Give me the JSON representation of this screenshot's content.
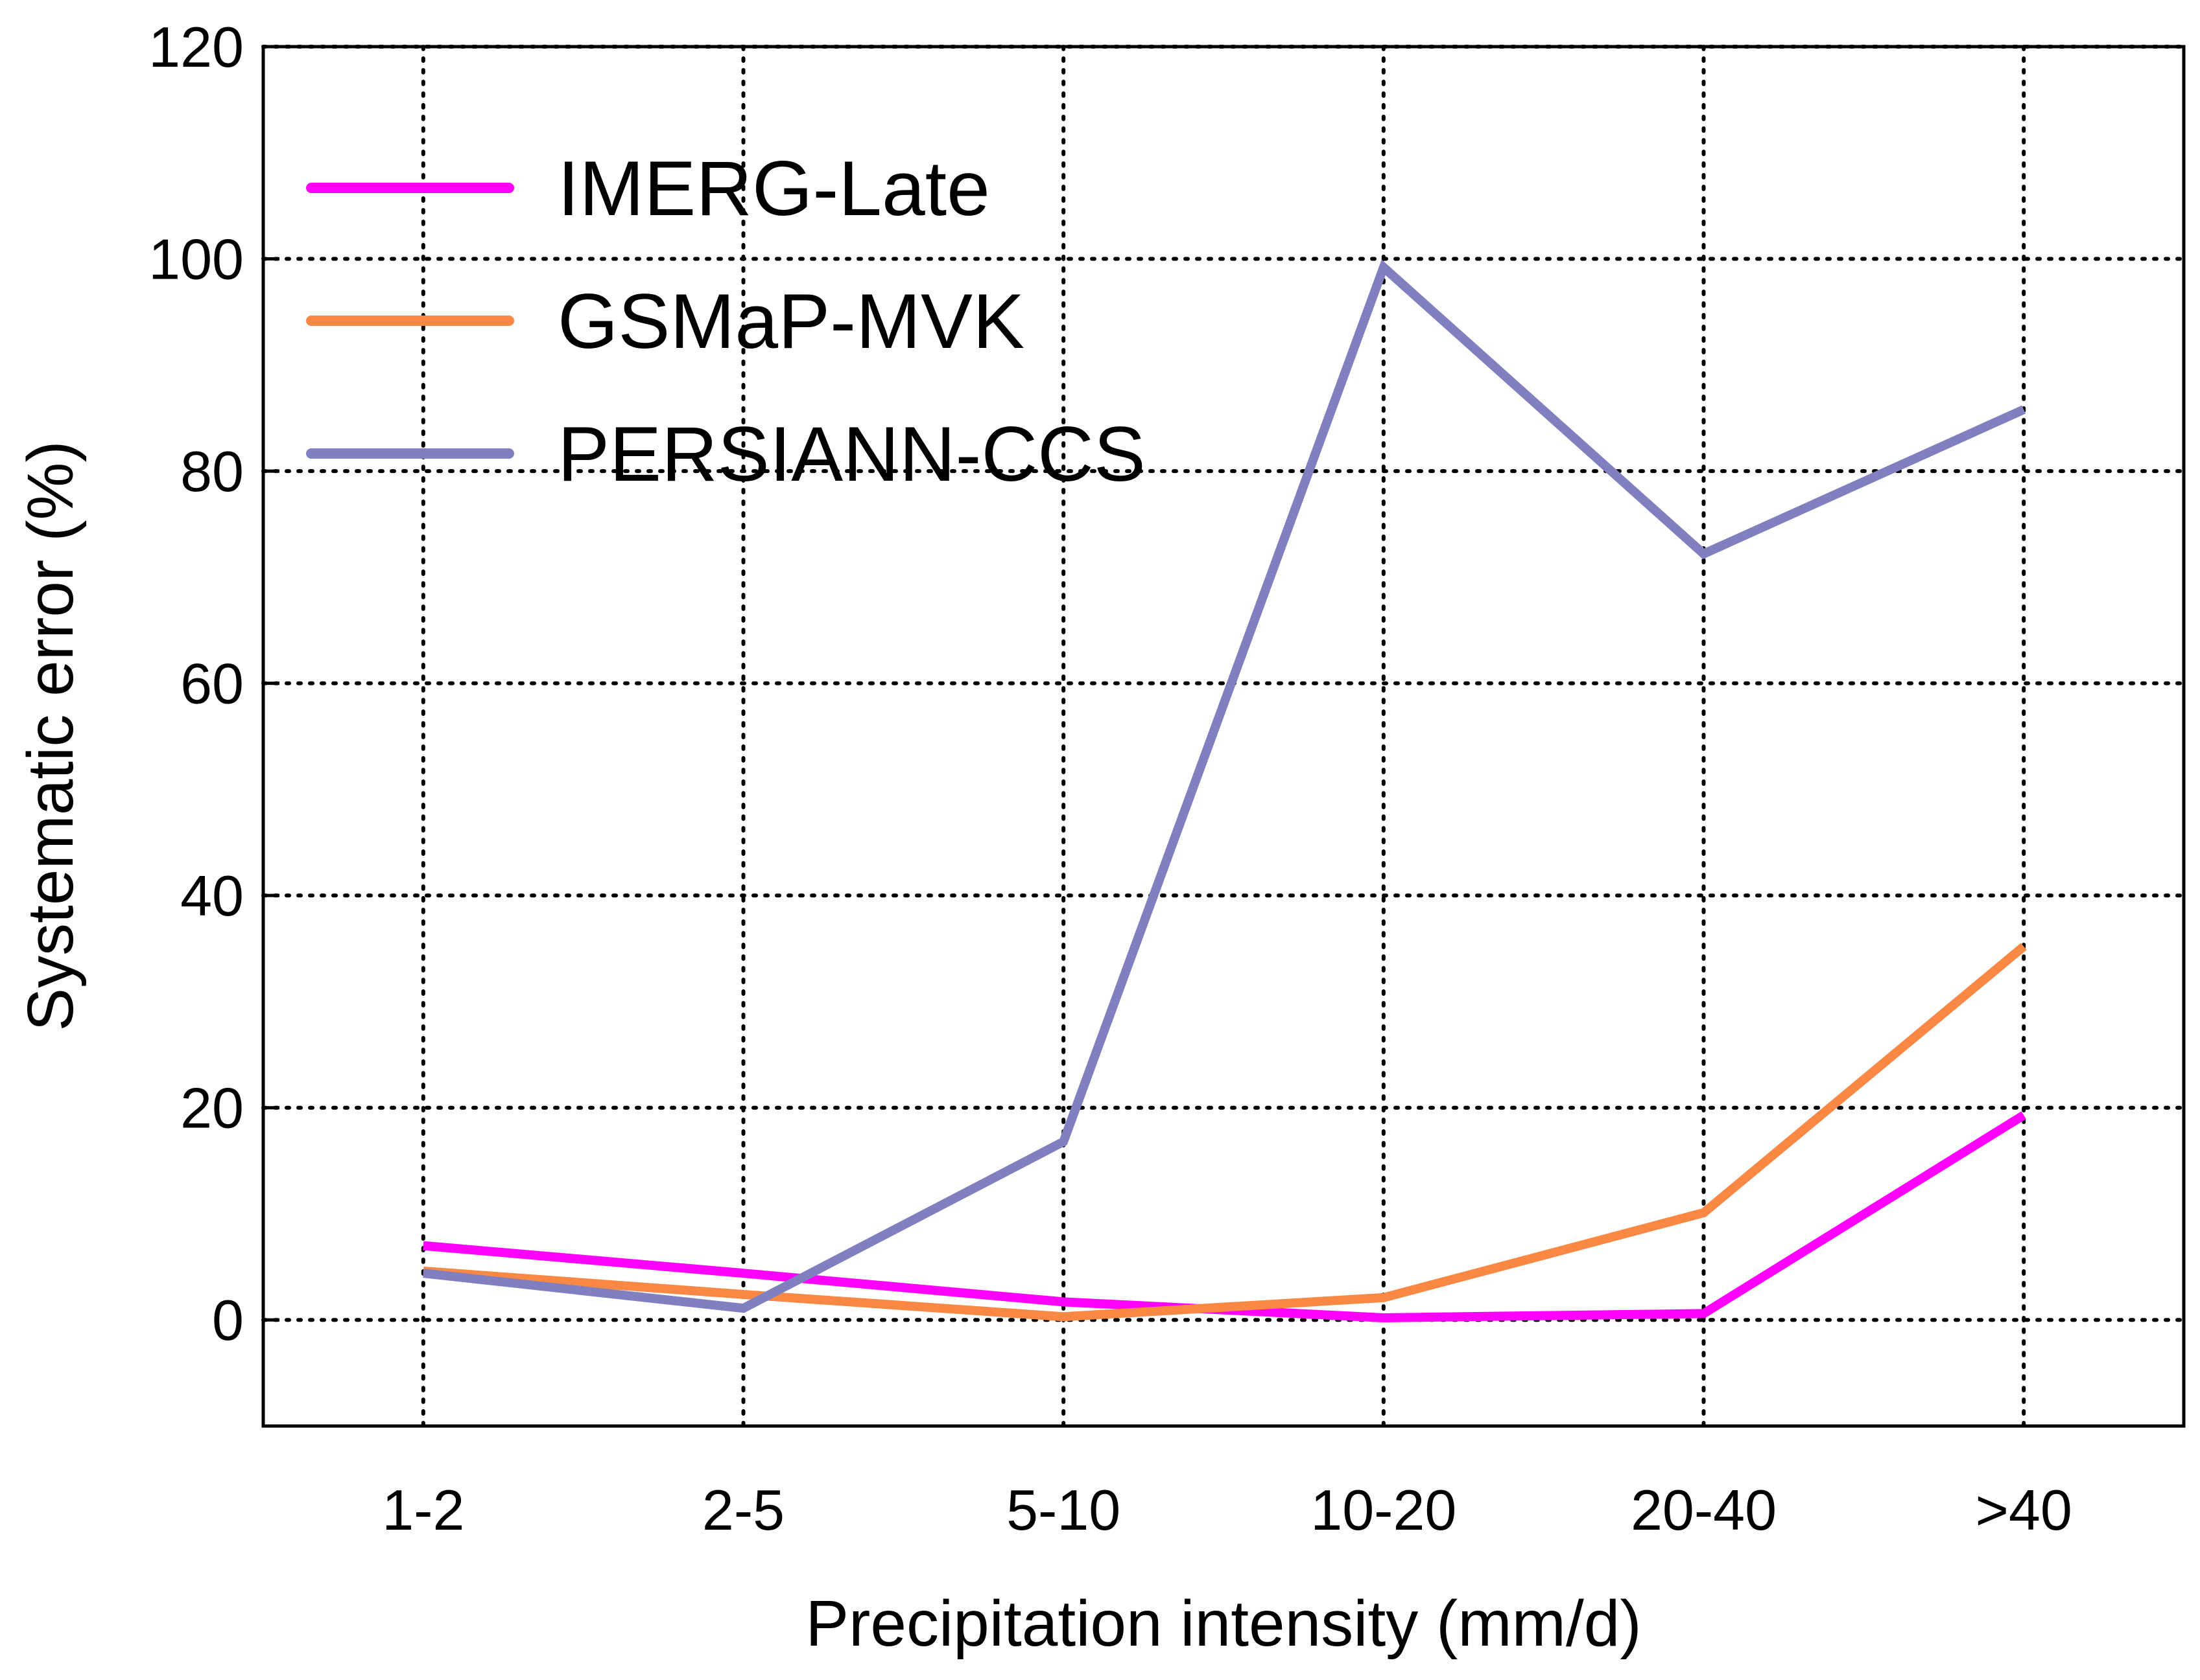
{
  "chart_data": {
    "type": "line",
    "title": "",
    "xlabel": "Precipitation intensity (mm/d)",
    "ylabel": "Systematic error (%)",
    "categories": [
      "1-2",
      "2-5",
      "5-10",
      "10-20",
      "20-40",
      ">40"
    ],
    "ylim": [
      -10,
      120
    ],
    "yticks": [
      0,
      20,
      40,
      60,
      80,
      100,
      120
    ],
    "grid": true,
    "grid_style": "dotted",
    "legend_position": "top-left",
    "series": [
      {
        "name": "IMERG-Late",
        "color": "#ff00ff",
        "values": [
          7.0,
          4.4,
          1.7,
          0.2,
          0.6,
          19.3
        ]
      },
      {
        "name": "GSMaP-MVK",
        "color": "#f88844",
        "values": [
          4.6,
          2.4,
          0.3,
          2.1,
          10.1,
          35.2
        ]
      },
      {
        "name": "PERSIANN-CCS",
        "color": "#8080c0",
        "values": [
          4.4,
          1.1,
          16.8,
          99.2,
          72.2,
          85.8
        ]
      }
    ]
  }
}
